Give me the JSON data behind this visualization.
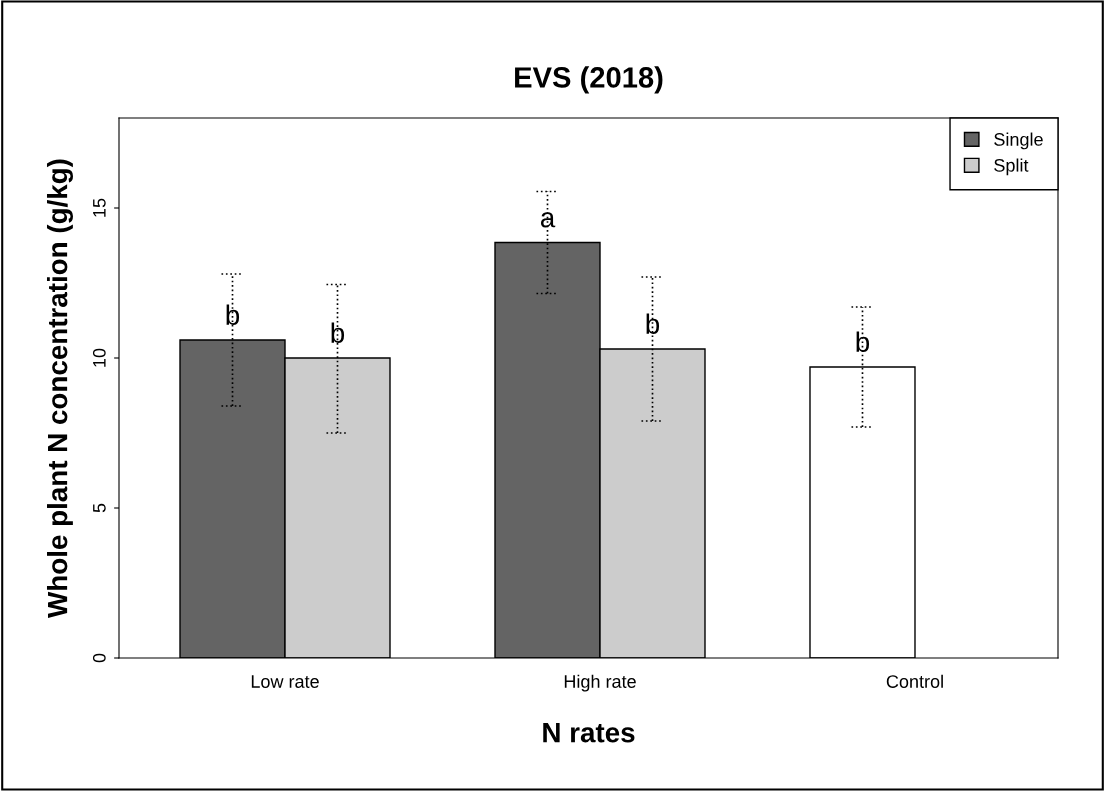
{
  "chart_data": {
    "type": "bar",
    "title": "EVS (2018)",
    "xlabel": "N rates",
    "ylabel": "Whole plant N concentration (g/kg)",
    "categories": [
      "Low rate",
      "High rate",
      "Control"
    ],
    "series": [
      {
        "name": "Single",
        "color": "#646464",
        "colors": [
          "#646464",
          "#646464",
          "#ffffff"
        ],
        "values": [
          10.6,
          13.85,
          9.7
        ],
        "value_labels": [
          "b",
          "a",
          "b"
        ],
        "errors": [
          [
            8.4,
            12.8
          ],
          [
            12.15,
            15.55
          ],
          [
            7.7,
            11.7
          ]
        ]
      },
      {
        "name": "Split",
        "color": "#cccccc",
        "values": [
          10.0,
          10.3,
          null
        ],
        "value_labels": [
          "b",
          "b",
          null
        ],
        "errors": [
          [
            7.5,
            12.45
          ],
          [
            7.9,
            12.7
          ],
          null
        ]
      }
    ],
    "ylim": [
      0,
      18
    ],
    "yticks": [
      0,
      5,
      10,
      15
    ],
    "grid": false,
    "legend": "top right"
  }
}
